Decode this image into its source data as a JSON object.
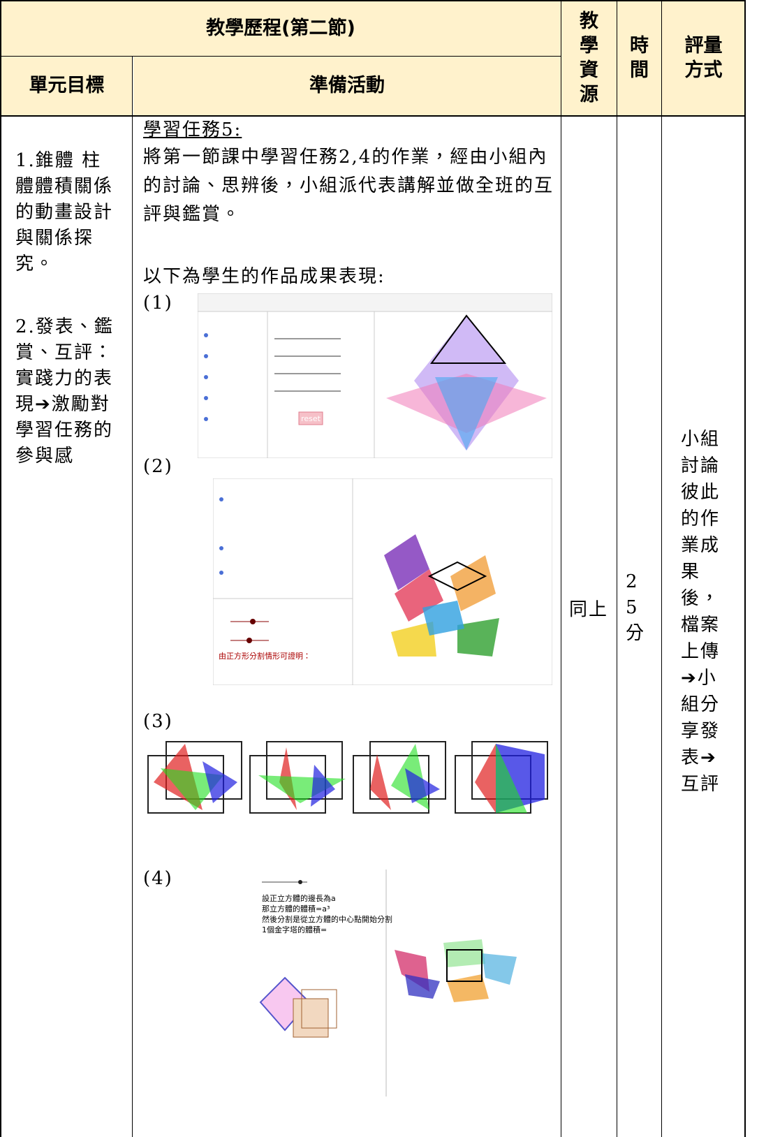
{
  "header": {
    "title": "教學歷程(第二節)",
    "goal_heading": "單元目標",
    "activity_heading": "準備活動",
    "resource_heading": "教學資源",
    "time_heading": "時間",
    "assessment_heading": "評量方式"
  },
  "goals": [
    "1.錐體 柱體體積關係的動畫設計與關係探究。",
    "2.發表、鑑賞、互評：實踐力的表現➔激勵對學習任務的參與感"
  ],
  "activity": {
    "task_title": "學習任務5:",
    "task_text": "將第一節課中學習任務2,4的作業，經由小組內的討論、思辨後，小組派代表講解並做全班的互評與鑑賞。",
    "intro": "以下為學生的作品成果表現:",
    "works": [
      {
        "label": "(1)",
        "button": "reset"
      },
      {
        "label": "(2)",
        "caption": "由正方形分割情形可證明："
      },
      {
        "label": "(3)"
      },
      {
        "label": "(4)",
        "lines": [
          "設正立方體的邊長為a",
          "那立方體的體積=a³",
          "然後分割是從立方體的中心點開始分割",
          "1個金字塔的體積="
        ]
      }
    ]
  },
  "resource": "同上",
  "time": "25分",
  "assessment": "小組討論彼此的作業成果後，檔案上傳➔小組分享發表➔互評"
}
